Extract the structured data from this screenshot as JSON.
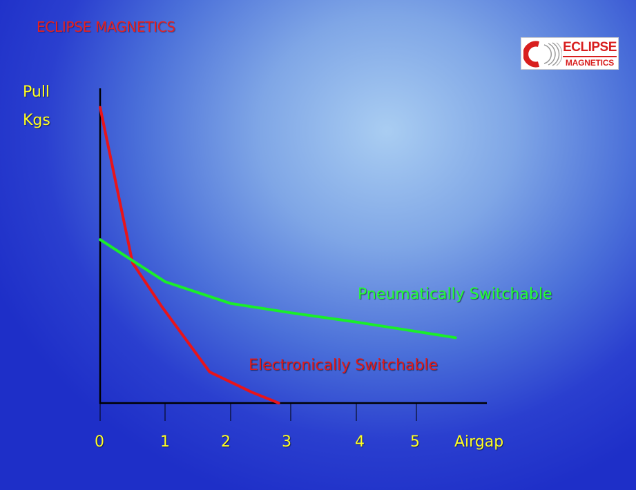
{
  "header": {
    "title": "ECLIPSE MAGNETICS"
  },
  "logo": {
    "line1": "ECLIPSE",
    "line2": "MAGNETICS",
    "color": "#d81e1e"
  },
  "chart_data": {
    "type": "line",
    "title": "",
    "ylabel_line1": "Pull",
    "ylabel_line2": "Kgs",
    "xlabel": "Airgap",
    "xticks": [
      0,
      1,
      2,
      3,
      4,
      5
    ],
    "xlim": [
      0,
      6.1
    ],
    "ylim": [
      0,
      10
    ],
    "grid": false,
    "series": [
      {
        "name": "Electronically Switchable",
        "color": "#e8141a",
        "x": [
          0,
          0.5,
          0.95,
          1.68,
          2.35,
          2.8
        ],
        "y": [
          9.5,
          4.5,
          3.1,
          1.0,
          0.35,
          0
        ]
      },
      {
        "name": "Pneumatically Switchable",
        "color": "#1aee2a",
        "x": [
          0,
          1,
          2,
          3,
          4,
          5,
          5.65
        ],
        "y": [
          5.25,
          3.9,
          3.2,
          2.9,
          2.6,
          2.3,
          2.1
        ]
      }
    ]
  }
}
